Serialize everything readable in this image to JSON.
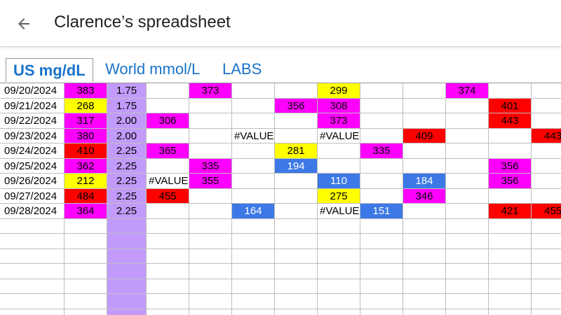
{
  "app": {
    "title": "Clarence’s spreadsheet"
  },
  "tabs": [
    {
      "label": "US mg/dL",
      "active": true
    },
    {
      "label": "World mmol/L",
      "active": false
    },
    {
      "label": "LABS",
      "active": false
    }
  ],
  "colors": {
    "magenta": "#ff00ff",
    "yellow": "#ffff00",
    "red": "#ff0000",
    "blue": "#3c78e6",
    "lavender": "#c29bfa",
    "white": "#ffffff",
    "link": "#1a73c9"
  },
  "sheet": {
    "rows": [
      [
        "09/20/2024",
        "383",
        "1.75",
        "",
        "373",
        "",
        "",
        "299",
        "",
        "",
        "374",
        "",
        ""
      ],
      [
        "09/21/2024",
        "268",
        "1.75",
        "",
        "",
        "",
        "356",
        "308",
        "",
        "",
        "",
        "401",
        ""
      ],
      [
        "09/22/2024",
        "317",
        "2.00",
        "306",
        "",
        "",
        "",
        "373",
        "",
        "",
        "",
        "443",
        ""
      ],
      [
        "09/23/2024",
        "380",
        "2.00",
        "",
        "",
        "#VALUE",
        "",
        "#VALUE",
        "",
        "409",
        "",
        "",
        "443"
      ],
      [
        "09/24/2024",
        "410",
        "2.25",
        "365",
        "",
        "",
        "281",
        "",
        "335",
        "",
        "",
        "",
        ""
      ],
      [
        "09/25/2024",
        "362",
        "2.25",
        "",
        "335",
        "",
        "194",
        "",
        "",
        "",
        "",
        "356",
        ""
      ],
      [
        "09/26/2024",
        "212",
        "2.25",
        "#VALUE",
        "355",
        "",
        "",
        "110",
        "",
        "184",
        "",
        "356",
        ""
      ],
      [
        "09/27/2024",
        "484",
        "2.25",
        "455",
        "",
        "",
        "",
        "275",
        "",
        "346",
        "",
        "",
        ""
      ],
      [
        "09/28/2024",
        "364",
        "2.25",
        "",
        "",
        "164",
        "",
        "#VALUE",
        "151",
        "",
        "",
        "421",
        "455"
      ]
    ],
    "fills": [
      [
        "",
        "magenta",
        "lavender",
        "",
        "magenta",
        "",
        "",
        "yellow",
        "",
        "",
        "magenta",
        "",
        ""
      ],
      [
        "",
        "yellow",
        "lavender",
        "",
        "",
        "",
        "magenta",
        "magenta",
        "",
        "",
        "",
        "red",
        ""
      ],
      [
        "",
        "magenta",
        "lavender",
        "magenta",
        "",
        "",
        "",
        "magenta",
        "",
        "",
        "",
        "red",
        ""
      ],
      [
        "",
        "magenta",
        "lavender",
        "",
        "",
        "",
        "",
        "",
        "",
        "red",
        "",
        "",
        "red"
      ],
      [
        "",
        "red",
        "lavender",
        "magenta",
        "",
        "",
        "yellow",
        "",
        "magenta",
        "",
        "",
        "",
        ""
      ],
      [
        "",
        "magenta",
        "lavender",
        "",
        "magenta",
        "",
        "blue",
        "",
        "",
        "",
        "",
        "magenta",
        ""
      ],
      [
        "",
        "yellow",
        "lavender",
        "",
        "magenta",
        "",
        "",
        "blue",
        "",
        "blue",
        "",
        "magenta",
        ""
      ],
      [
        "",
        "red",
        "lavender",
        "red",
        "",
        "",
        "",
        "yellow",
        "",
        "magenta",
        "",
        "",
        ""
      ],
      [
        "",
        "magenta",
        "lavender",
        "",
        "",
        "blue",
        "",
        "",
        "blue",
        "",
        "",
        "red",
        "red"
      ]
    ],
    "empty_rows": 7,
    "empty_fills": [
      "",
      "",
      "lavender",
      "",
      "",
      "",
      "",
      "",
      "",
      "",
      "",
      "",
      ""
    ]
  }
}
